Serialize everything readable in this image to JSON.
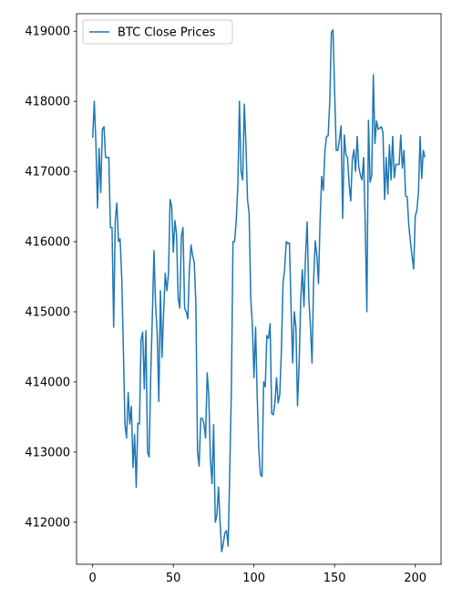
{
  "chart_data": {
    "type": "line",
    "title": "",
    "xlabel": "",
    "ylabel": "",
    "xlim": [
      -10,
      216
    ],
    "ylim": [
      411400,
      419250
    ],
    "x_ticks": [
      0,
      50,
      100,
      150,
      200
    ],
    "y_ticks": [
      412000,
      413000,
      414000,
      415000,
      416000,
      417000,
      418000,
      419000
    ],
    "grid": false,
    "legend": {
      "position": "top-left",
      "entries": [
        "BTC Close Prices"
      ]
    },
    "series": [
      {
        "name": "BTC Close Prices",
        "color": "#1f77b4",
        "x": [
          0,
          1,
          2,
          3,
          4,
          5,
          6,
          7,
          8,
          9,
          10,
          11,
          12,
          13,
          14,
          15,
          16,
          17,
          18,
          19,
          20,
          21,
          22,
          23,
          24,
          25,
          26,
          27,
          28,
          29,
          30,
          31,
          32,
          33,
          34,
          35,
          36,
          37,
          38,
          39,
          40,
          41,
          42,
          43,
          44,
          45,
          46,
          47,
          48,
          49,
          50,
          51,
          52,
          53,
          54,
          55,
          56,
          57,
          58,
          59,
          60,
          61,
          62,
          63,
          64,
          65,
          66,
          67,
          68,
          69,
          70,
          71,
          72,
          73,
          74,
          75,
          76,
          77,
          78,
          79,
          80,
          81,
          82,
          83,
          84,
          85,
          86,
          87,
          88,
          89,
          90,
          91,
          92,
          93,
          94,
          95,
          96,
          97,
          98,
          99,
          100,
          101,
          102,
          103,
          104,
          105,
          106,
          107,
          108,
          109,
          110,
          111,
          112,
          113,
          114,
          115,
          116,
          117,
          118,
          119,
          120,
          121,
          122,
          123,
          124,
          125,
          126,
          127,
          128,
          129,
          130,
          131,
          132,
          133,
          134,
          135,
          136,
          137,
          138,
          139,
          140,
          141,
          142,
          143,
          144,
          145,
          146,
          147,
          148,
          149,
          150,
          151,
          152,
          153,
          154,
          155,
          156,
          157,
          158,
          159,
          160,
          161,
          162,
          163,
          164,
          165,
          166,
          167,
          168,
          169,
          170,
          171,
          172,
          173,
          174,
          175,
          176,
          177,
          178,
          179,
          180,
          181,
          182,
          183,
          184,
          185,
          186,
          187,
          188,
          189,
          190,
          191,
          192,
          193,
          194,
          195,
          196,
          197,
          198,
          199,
          200,
          201,
          202,
          203,
          204,
          205,
          206
        ],
        "values": [
          417480,
          418000,
          417400,
          416480,
          417330,
          416700,
          417600,
          417640,
          417200,
          417200,
          417200,
          416200,
          416200,
          414780,
          416300,
          416550,
          416000,
          416040,
          415500,
          414500,
          413400,
          413200,
          413850,
          413400,
          413650,
          412780,
          413250,
          412500,
          413410,
          413400,
          414600,
          414710,
          413900,
          414730,
          413000,
          412930,
          414100,
          414950,
          415870,
          415100,
          414700,
          413720,
          415300,
          414350,
          415000,
          415550,
          415300,
          415540,
          416600,
          416500,
          415850,
          416300,
          416100,
          415200,
          415050,
          416070,
          416200,
          415050,
          415000,
          414900,
          415620,
          415950,
          415800,
          415700,
          415100,
          413000,
          412800,
          413480,
          413480,
          413400,
          413200,
          414130,
          413800,
          412900,
          412550,
          413390,
          412000,
          412100,
          412500,
          412000,
          411580,
          411700,
          411850,
          411880,
          411660,
          412740,
          413900,
          416000,
          416000,
          416300,
          416800,
          418000,
          417000,
          416880,
          417960,
          417400,
          416600,
          416400,
          415200,
          414810,
          414060,
          414780,
          413800,
          413050,
          412680,
          412650,
          414000,
          413930,
          414660,
          414620,
          414830,
          413550,
          413530,
          413700,
          414060,
          413700,
          413820,
          414440,
          415400,
          415600,
          416000,
          415970,
          415980,
          415070,
          414270,
          415000,
          414780,
          413660,
          414250,
          415180,
          415600,
          415070,
          415810,
          416280,
          415200,
          414800,
          414270,
          415460,
          416010,
          415800,
          415400,
          416300,
          416930,
          416730,
          417300,
          417500,
          417510,
          418000,
          418980,
          419020,
          418150,
          417300,
          417300,
          417460,
          417650,
          416330,
          417520,
          417240,
          417200,
          416820,
          416580,
          417180,
          417310,
          417000,
          417500,
          417060,
          416950,
          416880,
          417200,
          416230,
          415000,
          417730,
          416850,
          416940,
          418380,
          417400,
          417720,
          417600,
          417620,
          417640,
          417550,
          416600,
          417200,
          416680,
          417380,
          416880,
          417500,
          416910,
          417100,
          417100,
          417100,
          417520,
          417050,
          417300,
          416650,
          416640,
          416230,
          416000,
          415800,
          415610,
          416360,
          416450,
          416700,
          417500,
          416900,
          417300,
          417200
        ]
      }
    ]
  }
}
